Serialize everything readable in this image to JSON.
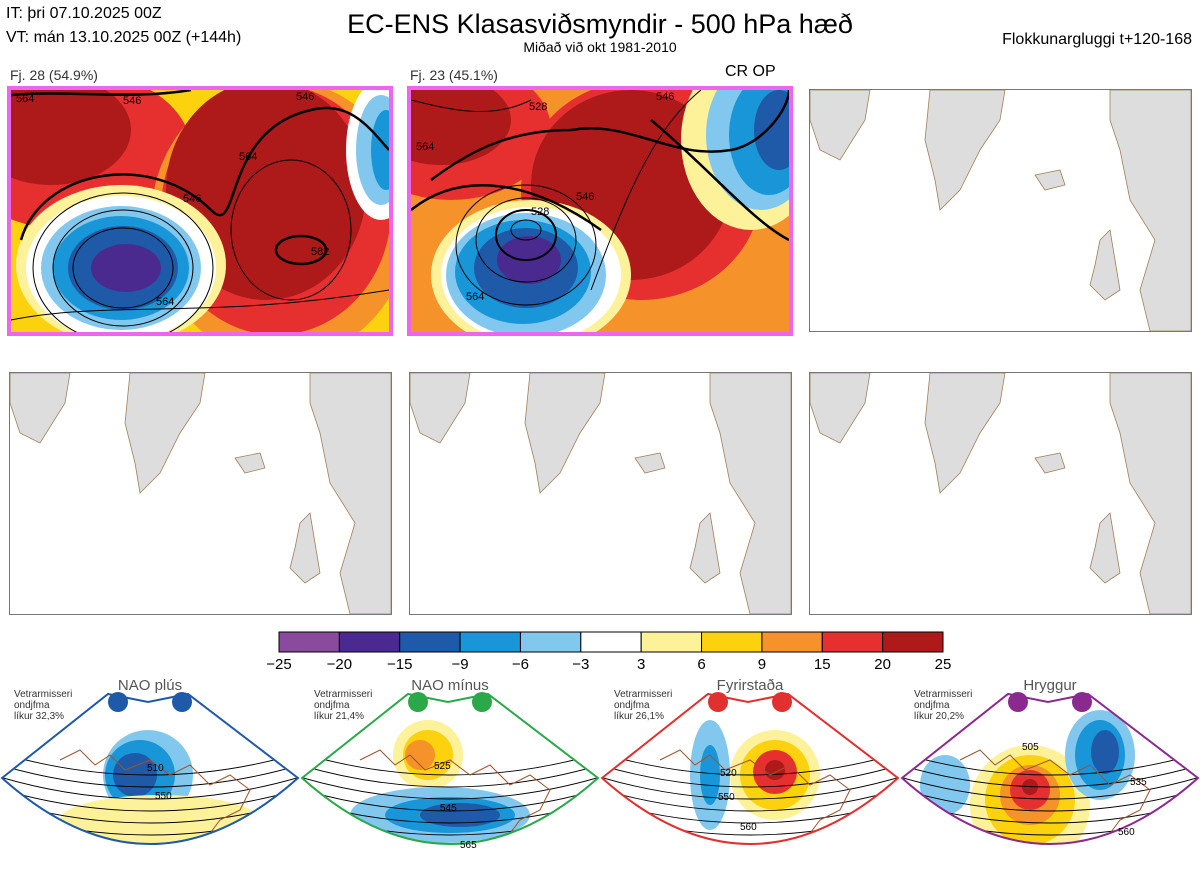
{
  "header": {
    "init_time": "IT: þri 07.10.2025 00Z",
    "valid_time": "VT: mán 13.10.2025 00Z  (+144h)",
    "title": "EC-ENS Klasasviðsmyndir - 500 hPa hæð",
    "subtitle": "Miðað við okt 1981-2010",
    "window": "Flokkunargluggi t+120-168"
  },
  "panels": [
    {
      "label": "Fj. 28 (54.9%)",
      "tag": "",
      "contours": [
        "564",
        "546",
        "546",
        "564",
        "582",
        "564",
        "546"
      ]
    },
    {
      "label": "Fj. 23 (45.1%)",
      "tag": "CR OP",
      "contours": [
        "528",
        "546",
        "564",
        "546",
        "528",
        "564"
      ]
    }
  ],
  "colorbar": {
    "colors": [
      "#8a4a9e",
      "#4b2a8f",
      "#1f5aa8",
      "#1996d8",
      "#82c8ee",
      "#ffffff",
      "#fdf19a",
      "#fcd20e",
      "#f5922a",
      "#e63030",
      "#ae1a1a"
    ],
    "ticks": [
      "−25",
      "−20",
      "−15",
      "−9",
      "−6",
      "−3",
      "3",
      "6",
      "9",
      "15",
      "20",
      "25"
    ]
  },
  "regimes": [
    {
      "name": "NAO plús",
      "season": "Vetrarmisseri",
      "subtitle": "ondjfma",
      "prob": "líkur 32,3%",
      "color": "#1f5aa8",
      "contours": [
        "510",
        "550"
      ]
    },
    {
      "name": "NAO mínus",
      "season": "Vetrarmisseri",
      "subtitle": "ondjfma",
      "prob": "líkur 21,4%",
      "color": "#2aa84a",
      "contours": [
        "525",
        "545",
        "565"
      ]
    },
    {
      "name": "Fyrirstaða",
      "season": "Vetrarmisseri",
      "subtitle": "ondjfma",
      "prob": "líkur 26,1%",
      "color": "#e03030",
      "contours": [
        "520",
        "550",
        "560"
      ]
    },
    {
      "name": "Hryggur",
      "season": "Vetrarmisseri",
      "subtitle": "ondjfma",
      "prob": "líkur 20,2%",
      "color": "#8b2a8e",
      "contours": [
        "505",
        "535",
        "560"
      ]
    }
  ]
}
